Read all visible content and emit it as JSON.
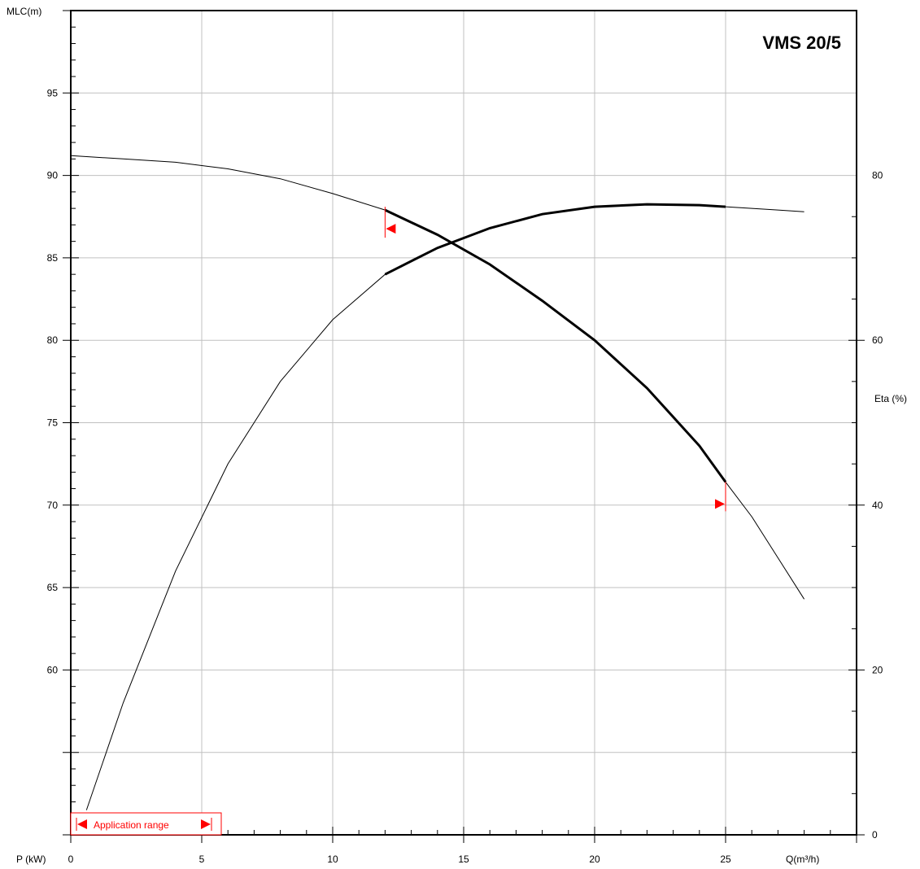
{
  "chart_data": {
    "type": "line",
    "title": "VMS 20/5",
    "xlabel": "Q(m³/h)",
    "ylabel_left": "MLC(m)",
    "ylabel_right": "Eta (%)",
    "power_label": "P (kW)",
    "xlim": [
      0,
      30
    ],
    "ylim_left": [
      50,
      100
    ],
    "ylim_right": [
      0,
      100
    ],
    "x_ticks": [
      0,
      5,
      10,
      15,
      20,
      25
    ],
    "y_left_ticks": [
      60,
      65,
      70,
      75,
      80,
      85,
      90,
      95
    ],
    "y_right_ticks": [
      0,
      20,
      40,
      60,
      80
    ],
    "grid": true,
    "series": [
      {
        "axis": "left",
        "x": [
          0,
          2,
          4,
          6,
          8,
          10,
          12,
          14,
          16,
          18,
          20,
          22,
          24,
          25,
          26,
          27,
          28
        ],
        "y": [
          91.2,
          91.0,
          90.8,
          90.4,
          89.8,
          88.9,
          87.9,
          86.4,
          84.6,
          82.4,
          80.0,
          77.1,
          73.6,
          71.4,
          69.3,
          66.8,
          64.3
        ],
        "bold_range": [
          12,
          25
        ]
      },
      {
        "axis": "right",
        "x": [
          0.6,
          2,
          4,
          6,
          8,
          10,
          12,
          14,
          16,
          18,
          20,
          22,
          24,
          25,
          27,
          28
        ],
        "y": [
          3,
          16,
          32,
          45,
          55,
          62.5,
          68,
          71.2,
          73.6,
          75.3,
          76.2,
          76.5,
          76.4,
          76.2,
          75.8,
          75.6
        ],
        "bold_range": [
          12,
          25
        ]
      }
    ],
    "operating_range": {
      "min": 12,
      "max": 25
    },
    "legend": {
      "label": "Application range"
    },
    "colors": {
      "curve": "#000000",
      "range_marker": "#ff0000",
      "grid": "#c0c0c0"
    }
  }
}
